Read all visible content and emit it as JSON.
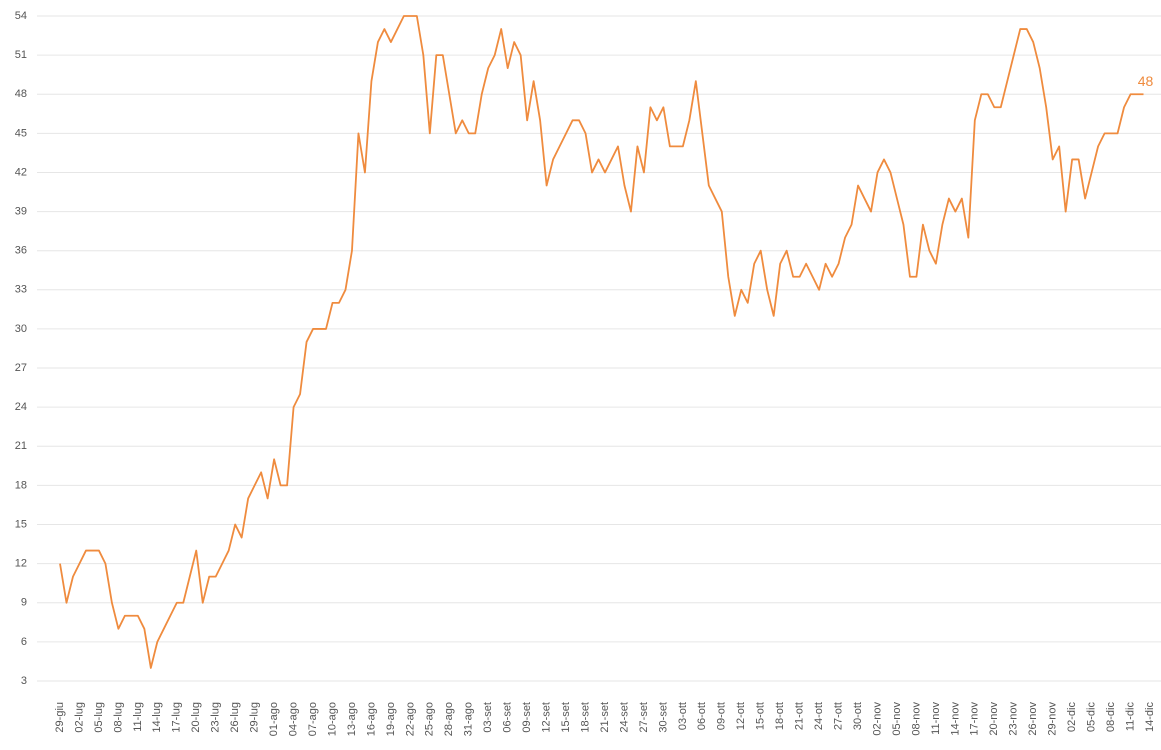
{
  "chart_data": {
    "type": "line",
    "categories": [
      "29-giu",
      null,
      null,
      "02-lug",
      null,
      null,
      "05-lug",
      null,
      null,
      "08-lug",
      null,
      null,
      "11-lug",
      null,
      null,
      "14-lug",
      null,
      null,
      "17-lug",
      null,
      null,
      "20-lug",
      null,
      null,
      "23-lug",
      null,
      null,
      "26-lug",
      null,
      null,
      "29-lug",
      null,
      null,
      "01-ago",
      null,
      null,
      "04-ago",
      null,
      null,
      "07-ago",
      null,
      null,
      "10-ago",
      null,
      null,
      "13-ago",
      null,
      null,
      "16-ago",
      null,
      null,
      "19-ago",
      null,
      null,
      "22-ago",
      null,
      null,
      "25-ago",
      null,
      null,
      "28-ago",
      null,
      null,
      "31-ago",
      null,
      null,
      "03-set",
      null,
      null,
      "06-set",
      null,
      null,
      "09-set",
      null,
      null,
      "12-set",
      null,
      null,
      "15-set",
      null,
      null,
      "18-set",
      null,
      null,
      "21-set",
      null,
      null,
      "24-set",
      null,
      null,
      "27-set",
      null,
      null,
      "30-set",
      null,
      null,
      "03-ott",
      null,
      null,
      "06-ott",
      null,
      null,
      "09-ott",
      null,
      null,
      "12-ott",
      null,
      null,
      "15-ott",
      null,
      null,
      "18-ott",
      null,
      null,
      "21-ott",
      null,
      null,
      "24-ott",
      null,
      null,
      "27-ott",
      null,
      null,
      "30-ott",
      null,
      null,
      "02-nov",
      null,
      null,
      "05-nov",
      null,
      null,
      "08-nov",
      null,
      null,
      "11-nov",
      null,
      null,
      "14-nov",
      null,
      null,
      "17-nov",
      null,
      null,
      "20-nov",
      null,
      null,
      "23-nov",
      null,
      null,
      "26-nov",
      null,
      null,
      "29-nov",
      null,
      null,
      "02-dic",
      null,
      null,
      "05-dic",
      null,
      null,
      "08-dic",
      null,
      null,
      "11-dic",
      null,
      null,
      "14-dic"
    ],
    "series": [
      {
        "color": "#ef8b3e",
        "values": [
          12,
          9,
          11,
          12,
          13,
          13,
          13,
          12,
          9,
          7,
          8,
          8,
          8,
          7,
          4,
          6,
          7,
          8,
          9,
          9,
          11,
          13,
          9,
          11,
          11,
          12,
          13,
          15,
          14,
          17,
          18,
          19,
          17,
          20,
          18,
          18,
          24,
          25,
          29,
          30,
          30,
          30,
          32,
          32,
          33,
          36,
          45,
          42,
          49,
          52,
          53,
          52,
          53,
          54,
          54,
          54,
          51,
          45,
          51,
          51,
          48,
          45,
          46,
          45,
          45,
          48,
          50,
          51,
          53,
          50,
          52,
          51,
          46,
          49,
          46,
          41,
          43,
          44,
          45,
          46,
          46,
          45,
          42,
          43,
          42,
          43,
          44,
          41,
          39,
          44,
          42,
          47,
          46,
          47,
          44,
          44,
          44,
          46,
          49,
          45,
          41,
          40,
          39,
          34,
          31,
          33,
          32,
          35,
          36,
          33,
          31,
          35,
          36,
          34,
          34,
          35,
          34,
          33,
          35,
          34,
          35,
          37,
          38,
          41,
          40,
          39,
          42,
          43,
          42,
          40,
          38,
          34,
          34,
          38,
          36,
          35,
          38,
          40,
          39,
          40,
          37,
          46,
          48,
          48,
          47,
          47,
          49,
          51,
          53,
          53,
          52,
          50,
          47,
          43,
          44,
          39,
          43,
          43,
          40,
          42,
          44,
          45,
          45,
          45,
          47,
          48,
          48,
          48,
          null
        ]
      }
    ],
    "ylim": [
      2,
      54
    ],
    "yticks": [
      3,
      6,
      9,
      12,
      15,
      18,
      21,
      24,
      27,
      30,
      33,
      36,
      39,
      42,
      45,
      48,
      51,
      54
    ],
    "grid": true
  }
}
